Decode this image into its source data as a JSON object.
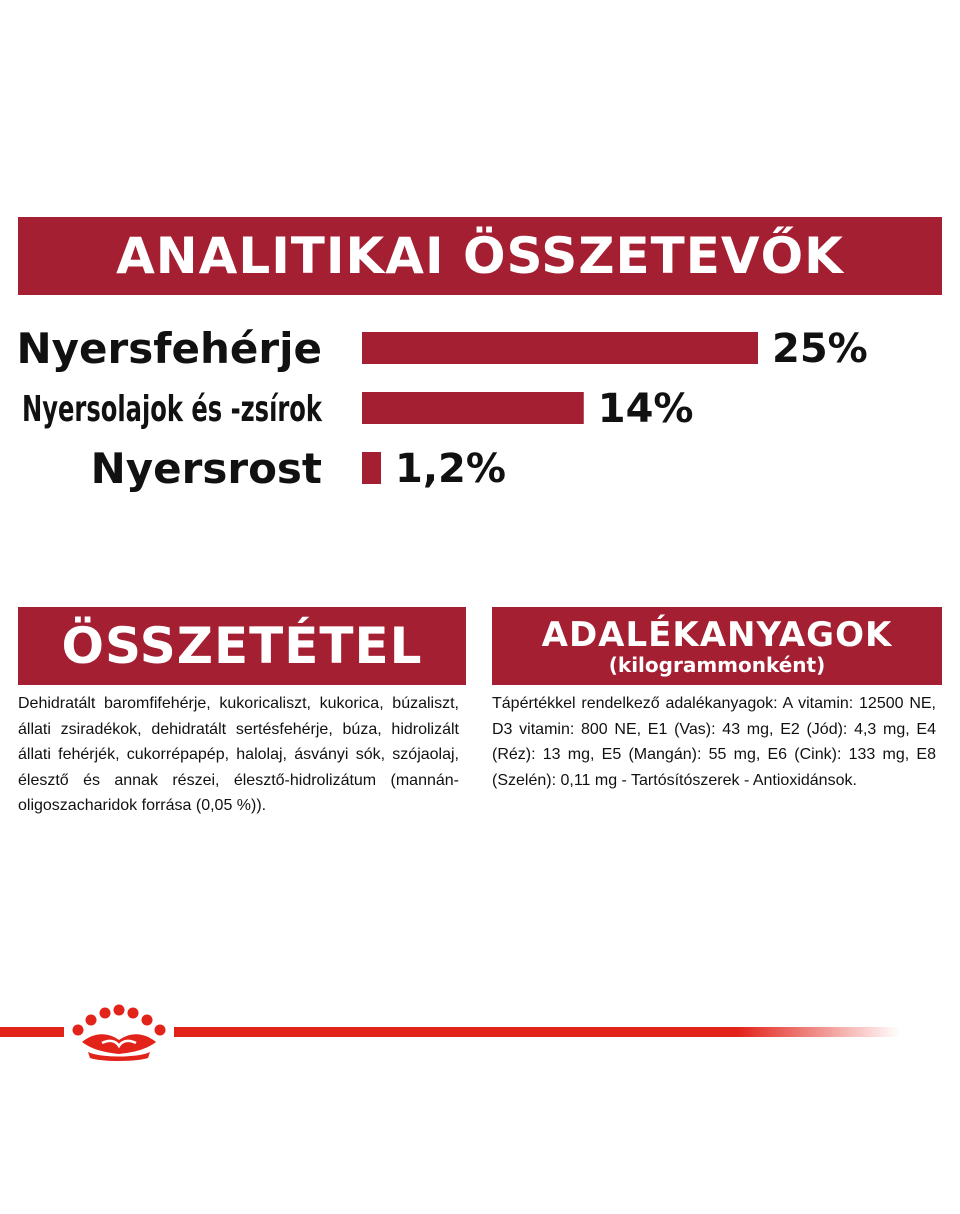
{
  "header": {
    "title": "ANALITIKAI ÖSSZETEVŐK"
  },
  "chart_data": {
    "type": "bar",
    "orientation": "horizontal",
    "categories": [
      "Nyersfehérje",
      "Nyersolajok és -zsírok",
      "Nyersrost"
    ],
    "values": [
      25,
      14,
      1.2
    ],
    "value_labels": [
      "25%",
      "14%",
      "1,2%"
    ],
    "unit": "%",
    "bar_color": "#a51f32",
    "xlim": [
      0,
      25
    ]
  },
  "composition": {
    "title": "ÖSSZETÉTEL",
    "text": "Dehidratált baromfifehérje, kukoricaliszt, kukorica, búzaliszt, állati zsiradékok, dehidratált sertésfehérje, búza, hidrolizált állati fehérjék, cukorrépapép, halolaj, ásványi sók, szójaolaj, élesztő és annak részei, élesztő-hidrolizátum (mannán-oligoszacharidok forrása (0,05 %))."
  },
  "additives": {
    "title": "ADALÉKANYAGOK",
    "subtitle": "(kilogrammonként)",
    "text": "Tápértékkel rendelkező adalékanyagok: A vitamin: 12500 NE, D3 vitamin: 800 NE, E1 (Vas): 43 mg, E2 (Jód): 4,3 mg, E4 (Réz): 13 mg, E5 (Mangán): 55 mg, E6 (Cink): 133 mg, E8 (Szelén): 0,11 mg - Tartósítószerek - Antioxidánsok."
  },
  "brand": {
    "logo_icon": "crown-icon",
    "accent": "#e2231a",
    "banner_color": "#a51f32"
  }
}
